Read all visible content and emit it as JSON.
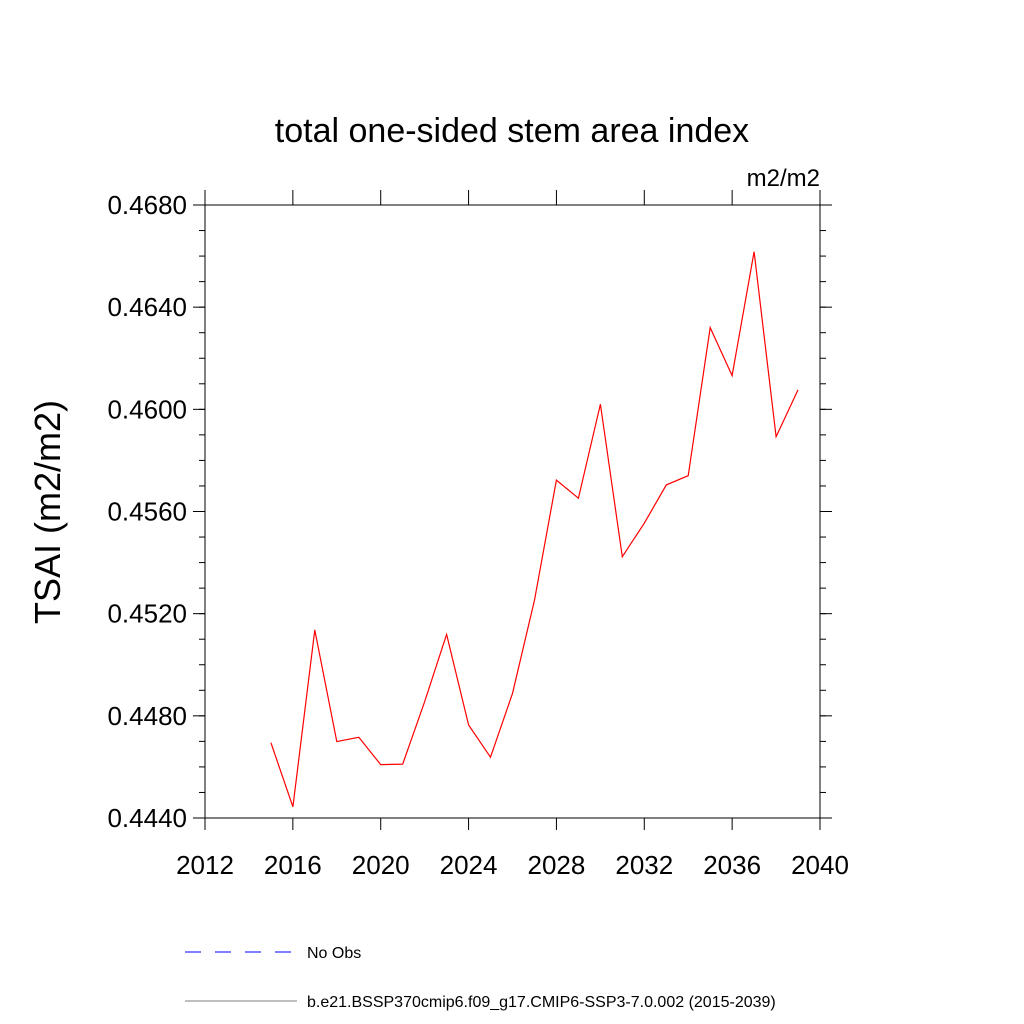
{
  "chart_data": {
    "type": "line",
    "title": "total one-sided stem area index",
    "units_label": "m2/m2",
    "xlabel": "",
    "ylabel": "TSAI  (m2/m2)",
    "xlim": [
      2012,
      2040
    ],
    "ylim": [
      0.444,
      0.468
    ],
    "x_ticks": [
      2012,
      2016,
      2020,
      2024,
      2028,
      2032,
      2036,
      2040
    ],
    "x_tick_labels": [
      "2012",
      "2016",
      "2020",
      "2024",
      "2028",
      "2032",
      "2036",
      "2040"
    ],
    "y_ticks": [
      0.444,
      0.448,
      0.452,
      0.456,
      0.46,
      0.464,
      0.468
    ],
    "y_tick_labels": [
      "0.4440",
      "0.4480",
      "0.4520",
      "0.4560",
      "0.4600",
      "0.4640",
      "0.4680"
    ],
    "y_minor_step": 0.001,
    "grid": false,
    "series": [
      {
        "name": "b.e21.BSSP370cmip6.f09_g17.CMIP6-SSP3-7.0.002 (2015-2039)",
        "color": "#ff0000",
        "x": [
          2015,
          2016,
          2017,
          2018,
          2019,
          2020,
          2021,
          2022,
          2023,
          2024,
          2025,
          2026,
          2027,
          2028,
          2029,
          2030,
          2031,
          2032,
          2033,
          2034,
          2035,
          2036,
          2037,
          2038,
          2039
        ],
        "values": [
          0.44695,
          0.44444,
          0.45136,
          0.44699,
          0.44716,
          0.44609,
          0.44611,
          0.44855,
          0.45119,
          0.44764,
          0.44638,
          0.44888,
          0.45253,
          0.45723,
          0.45652,
          0.4602,
          0.45423,
          0.45554,
          0.45704,
          0.4574,
          0.4632,
          0.46132,
          0.46617,
          0.45893,
          0.46076
        ]
      }
    ],
    "legend": {
      "placement": "bottom",
      "entries": [
        {
          "label": "No Obs",
          "color": "#0000ff",
          "style": "dashed"
        },
        {
          "label": "b.e21.BSSP370cmip6.f09_g17.CMIP6-SSP3-7.0.002 (2015-2039)",
          "color": "#808080",
          "style": "solid"
        }
      ]
    }
  }
}
